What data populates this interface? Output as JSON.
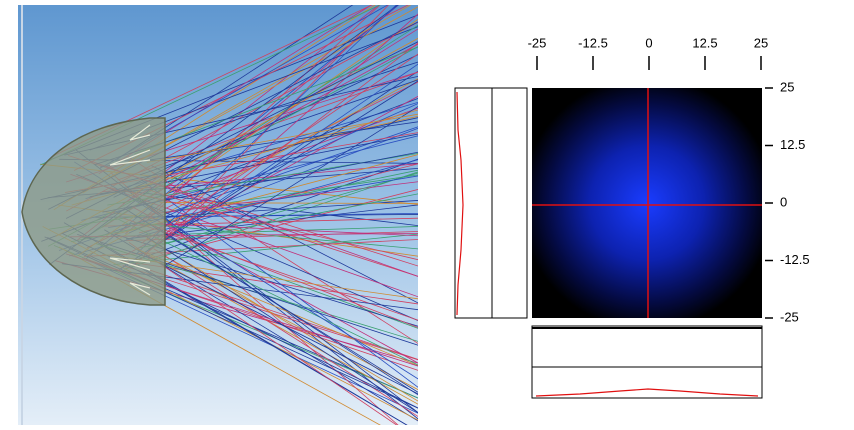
{
  "irradiance_map": {
    "xlim": [
      -25,
      25
    ],
    "xticks": [
      -25,
      -12.5,
      0,
      12.5,
      25
    ],
    "ylim": [
      -25,
      25
    ],
    "yticks": [
      25,
      12.5,
      0,
      -12.5,
      -25
    ]
  }
}
